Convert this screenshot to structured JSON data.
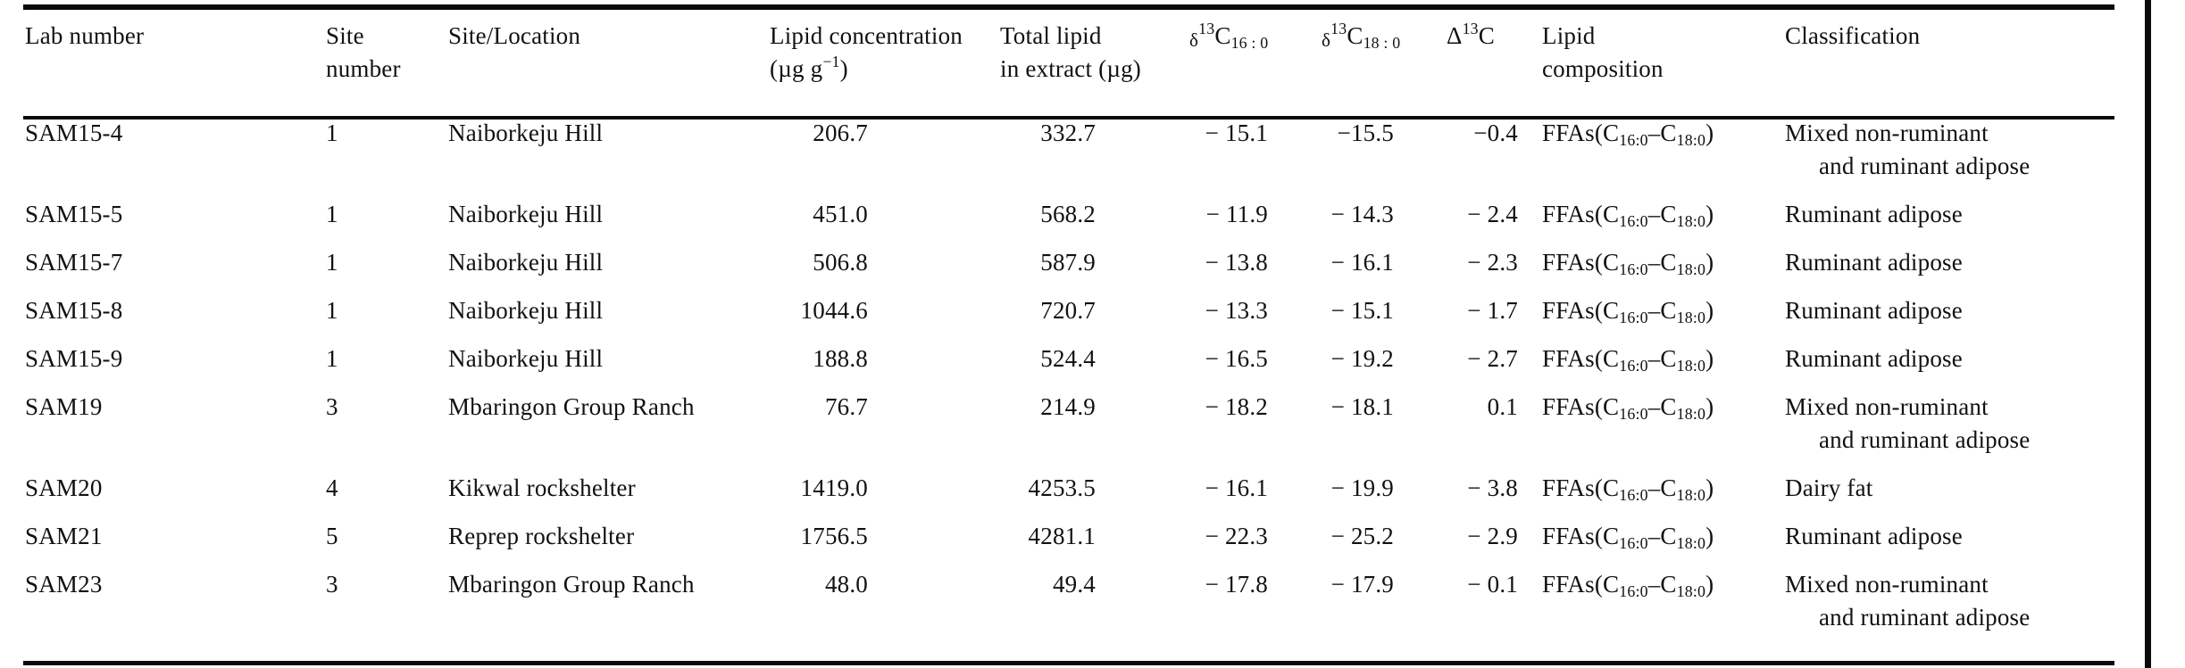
{
  "header": {
    "lab": "Lab number",
    "site_line1": "Site",
    "site_line2": "number",
    "location": "Site/Location",
    "conc_line1": "Lipid concentration",
    "conc_line2_pre": "(µg g",
    "conc_sup": "−1",
    "conc_line2_post": ")",
    "total_line1": "Total lipid",
    "total_line2": "in extract (µg)",
    "d16_delta": "δ",
    "d16_sup": "13",
    "d16_c": "C",
    "d16_sub": "16 : 0",
    "d18_delta": "δ",
    "d18_sup": "13",
    "d18_c": "C",
    "d18_sub": "18 : 0",
    "delta_cap": "Δ",
    "delta_sup": "13",
    "delta_c": "C",
    "comp_line1": "Lipid",
    "comp_line2": "composition",
    "classification": "Classification"
  },
  "ffas": {
    "pre": "FFAs(C",
    "sub1": "16:0",
    "dash": "–C",
    "sub2": "18:0",
    "post": ")"
  },
  "rows": [
    {
      "lab": "SAM15-4",
      "site": "1",
      "location": "Naiborkeju Hill",
      "conc": "206.7",
      "total": "332.7",
      "d16": "− 15.1",
      "d18": "−15.5",
      "delta": "−0.4",
      "composition": "FFAs(C16:0–C18:0)",
      "class_line1": "Mixed non-ruminant",
      "class_line2": "and ruminant adipose"
    },
    {
      "lab": "SAM15-5",
      "site": "1",
      "location": "Naiborkeju Hill",
      "conc": "451.0",
      "total": "568.2",
      "d16": "− 11.9",
      "d18": "− 14.3",
      "delta": "− 2.4",
      "composition": "FFAs(C16:0–C18:0)",
      "class_line1": "Ruminant adipose",
      "class_line2": ""
    },
    {
      "lab": "SAM15-7",
      "site": "1",
      "location": "Naiborkeju Hill",
      "conc": "506.8",
      "total": "587.9",
      "d16": "− 13.8",
      "d18": "− 16.1",
      "delta": "− 2.3",
      "composition": "FFAs(C16:0–C18:0)",
      "class_line1": "Ruminant adipose",
      "class_line2": ""
    },
    {
      "lab": "SAM15-8",
      "site": "1",
      "location": "Naiborkeju Hill",
      "conc": "1044.6",
      "total": "720.7",
      "d16": "− 13.3",
      "d18": "− 15.1",
      "delta": "− 1.7",
      "composition": "FFAs(C16:0–C18:0)",
      "class_line1": "Ruminant adipose",
      "class_line2": ""
    },
    {
      "lab": "SAM15-9",
      "site": "1",
      "location": "Naiborkeju Hill",
      "conc": "188.8",
      "total": "524.4",
      "d16": "− 16.5",
      "d18": "− 19.2",
      "delta": "− 2.7",
      "composition": "FFAs(C16:0–C18:0)",
      "class_line1": "Ruminant adipose",
      "class_line2": ""
    },
    {
      "lab": "SAM19",
      "site": "3",
      "location": "Mbaringon Group Ranch",
      "conc": "76.7",
      "total": "214.9",
      "d16": "− 18.2",
      "d18": "− 18.1",
      "delta": "0.1",
      "composition": "FFAs(C16:0–C18:0)",
      "class_line1": "Mixed non-ruminant",
      "class_line2": "and ruminant adipose"
    },
    {
      "lab": "SAM20",
      "site": "4",
      "location": "Kikwal rockshelter",
      "conc": "1419.0",
      "total": "4253.5",
      "d16": "− 16.1",
      "d18": "− 19.9",
      "delta": "− 3.8",
      "composition": "FFAs(C16:0–C18:0)",
      "class_line1": "Dairy fat",
      "class_line2": ""
    },
    {
      "lab": "SAM21",
      "site": "5",
      "location": "Reprep rockshelter",
      "conc": "1756.5",
      "total": "4281.1",
      "d16": "− 22.3",
      "d18": "− 25.2",
      "delta": "− 2.9",
      "composition": "FFAs(C16:0–C18:0)",
      "class_line1": "Ruminant adipose",
      "class_line2": ""
    },
    {
      "lab": "SAM23",
      "site": "3",
      "location": "Mbaringon Group Ranch",
      "conc": "48.0",
      "total": "49.4",
      "d16": "− 17.8",
      "d18": "− 17.9",
      "delta": "− 0.1",
      "composition": "FFAs(C16:0–C18:0)",
      "class_line1": "Mixed non-ruminant",
      "class_line2": "and ruminant adipose"
    }
  ]
}
